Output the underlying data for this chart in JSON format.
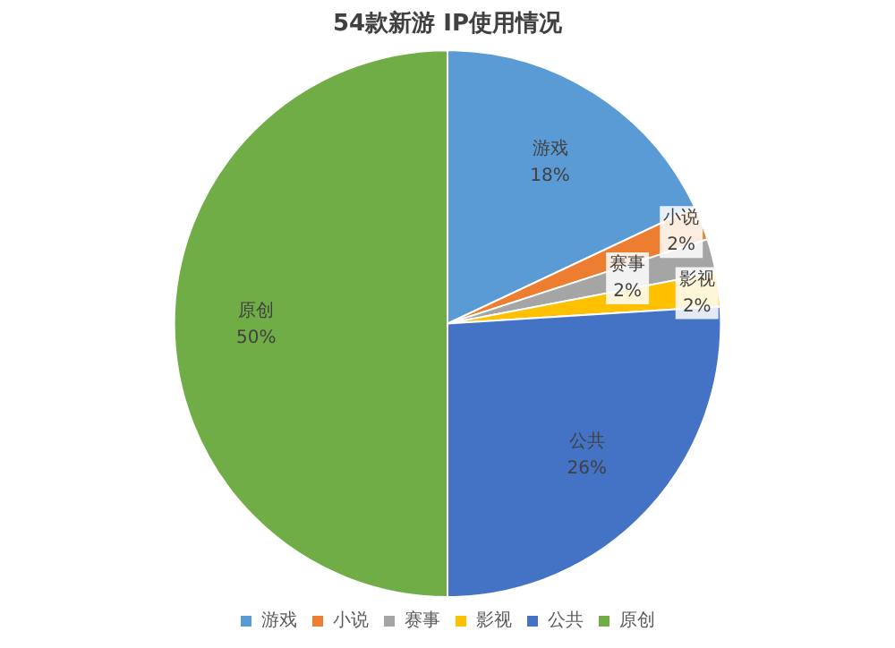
{
  "chart_data": {
    "type": "pie",
    "title": "54款新游 IP使用情况",
    "categories": [
      "游戏",
      "小说",
      "赛事",
      "影视",
      "公共",
      "原创"
    ],
    "values": [
      18,
      2,
      2,
      2,
      26,
      50
    ],
    "colors": [
      "#5b9bd5",
      "#ed7d31",
      "#a5a5a5",
      "#ffc000",
      "#4472c4",
      "#70ad47"
    ],
    "value_labels": [
      "18%",
      "2%",
      "2%",
      "2%",
      "26%",
      "50%"
    ],
    "legend": "bottom"
  }
}
